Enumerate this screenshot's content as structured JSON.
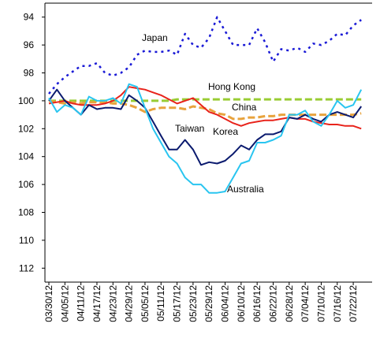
{
  "chart_data": {
    "type": "line",
    "categories": [
      "03/30/12",
      null,
      "04/05/12",
      null,
      "04/11/12",
      null,
      "04/17/12",
      null,
      "04/23/12",
      null,
      "04/29/12",
      null,
      "05/05/12",
      null,
      "05/11/12",
      null,
      "05/17/12",
      null,
      "05/23/12",
      null,
      "05/29/12",
      null,
      "06/04/12",
      null,
      "06/10/12",
      null,
      "06/16/12",
      null,
      "06/22/12",
      null,
      "06/28/12",
      null,
      "07/04/12",
      null,
      "07/10/12",
      null,
      "07/16/12",
      null,
      "07/22/12",
      null
    ],
    "ylim": [
      93,
      113
    ],
    "y_inverted": true,
    "yticks": [
      94,
      96,
      98,
      100,
      102,
      104,
      106,
      108,
      110,
      112
    ],
    "grid": false,
    "series": [
      {
        "name": "Japan",
        "color": "#1a1ad6",
        "dash": "dotted",
        "values": [
          99.5,
          98.8,
          98.3,
          97.9,
          97.5,
          97.5,
          97.3,
          98,
          98.2,
          98,
          97.6,
          96.7,
          96.4,
          96.5,
          96.5,
          96.4,
          96.7,
          95.2,
          96,
          96.2,
          95.5,
          94,
          95,
          96,
          96,
          96,
          94.8,
          95.8,
          97.2,
          96.3,
          96.4,
          96.2,
          96.5,
          95.9,
          96,
          95.7,
          95.2,
          95.3,
          94.6,
          94.2
        ]
      },
      {
        "name": "Hong Kong",
        "color": "#99cc33",
        "dash": "dashed",
        "values": [
          100,
          100,
          100,
          100,
          100,
          100,
          100,
          100,
          100,
          100,
          100,
          100,
          100,
          100,
          100,
          100,
          99.9,
          99.9,
          99.9,
          99.9,
          99.9,
          99.9,
          99.9,
          99.9,
          99.9,
          99.9,
          99.9,
          99.9,
          99.9,
          99.9,
          99.9,
          99.9,
          99.9,
          99.9,
          99.9,
          99.9,
          99.9,
          99.9,
          99.9,
          99.9
        ]
      },
      {
        "name": "China",
        "color": "#e8a33d",
        "dash": "dashed",
        "values": [
          100,
          100.1,
          100.2,
          100.1,
          100.2,
          100.1,
          100.1,
          100.1,
          100.2,
          100.2,
          100.3,
          100.5,
          100.8,
          100.6,
          100.5,
          100.5,
          100.5,
          100.6,
          100.4,
          100.5,
          100.6,
          100.9,
          101,
          101.3,
          101.3,
          101.2,
          101.2,
          101.1,
          101.1,
          101,
          101,
          101,
          101,
          101,
          101,
          101,
          101,
          101,
          101,
          100.9
        ]
      },
      {
        "name": "Taiwan",
        "color": "#e8231b",
        "dash": "solid",
        "values": [
          100.2,
          100.1,
          100,
          100.2,
          100.3,
          100.3,
          100.3,
          100.2,
          100,
          99.6,
          99,
          99.1,
          99.2,
          99.4,
          99.6,
          99.9,
          100.2,
          100,
          99.8,
          100.3,
          100.8,
          101,
          101.3,
          101.6,
          101.8,
          101.6,
          101.5,
          101.4,
          101.4,
          101.3,
          101.2,
          101.3,
          101.3,
          101.5,
          101.6,
          101.7,
          101.7,
          101.8,
          101.8,
          102
        ]
      },
      {
        "name": "Korea",
        "color": "#0a1a6e",
        "dash": "solid",
        "values": [
          100,
          99.2,
          100,
          100.5,
          101,
          100.3,
          100.6,
          100.5,
          100.5,
          100.6,
          99.6,
          100,
          100.5,
          101.5,
          102.5,
          103.5,
          103.5,
          102.8,
          103.5,
          104.6,
          104.4,
          104.5,
          104.3,
          103.8,
          103.2,
          103.5,
          102.8,
          102.4,
          102.4,
          102.2,
          101.2,
          101.3,
          101,
          101.3,
          101.5,
          101,
          100.8,
          101,
          101.2,
          100.4
        ]
      },
      {
        "name": "Australia",
        "color": "#29c5f0",
        "dash": "solid",
        "values": [
          99.8,
          100.8,
          100.3,
          100.5,
          101,
          99.7,
          100,
          100,
          99.8,
          100.2,
          98.8,
          99,
          100.5,
          102,
          103,
          104,
          104.5,
          105.5,
          106,
          106,
          106.6,
          106.6,
          106.5,
          105.5,
          104.5,
          104.3,
          103,
          103,
          102.8,
          102.5,
          101,
          101,
          100.7,
          101.5,
          101.8,
          101,
          100,
          100.5,
          100.3,
          99.2
        ]
      }
    ]
  }
}
